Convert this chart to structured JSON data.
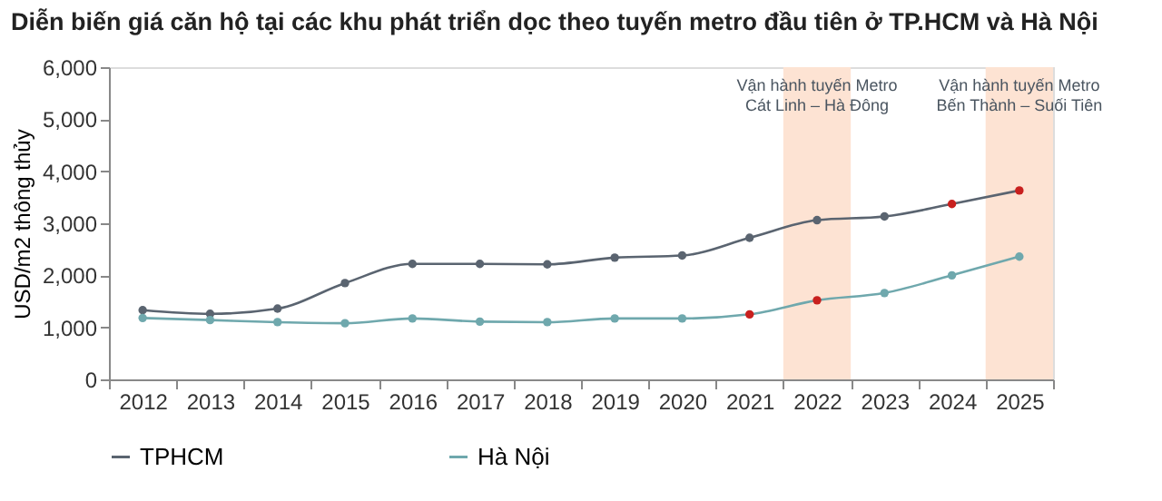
{
  "chart_data": {
    "type": "line",
    "title": "Diễn biến giá căn hộ tại các khu phát triển dọc theo tuyến metro đầu tiên ở TP.HCM và Hà Nội",
    "ylabel": "USD/m2 thông thủy",
    "categories": [
      "2012",
      "2013",
      "2014",
      "2015",
      "2016",
      "2017",
      "2018",
      "2019",
      "2020",
      "2021",
      "2022",
      "2023",
      "2024",
      "2025"
    ],
    "series": [
      {
        "name": "TPHCM",
        "color": "#5a6470",
        "values": [
          1330,
          1260,
          1360,
          1850,
          2220,
          2220,
          2210,
          2340,
          2380,
          2720,
          3060,
          3130,
          3370,
          3630
        ],
        "colors": [
          "#5a6470",
          "#5a6470",
          "#5a6470",
          "#5a6470",
          "#5a6470",
          "#5a6470",
          "#5a6470",
          "#5a6470",
          "#5a6470",
          "#5a6470",
          "#5a6470",
          "#5a6470",
          "#c8201e",
          "#c8201e"
        ]
      },
      {
        "name": "Hà Nội",
        "color": "#6fa8ad",
        "values": [
          1180,
          1140,
          1100,
          1080,
          1170,
          1110,
          1100,
          1170,
          1170,
          1250,
          1520,
          1660,
          2000,
          2360
        ],
        "colors": [
          "#6fa8ad",
          "#6fa8ad",
          "#6fa8ad",
          "#6fa8ad",
          "#6fa8ad",
          "#6fa8ad",
          "#6fa8ad",
          "#6fa8ad",
          "#6fa8ad",
          "#c8201e",
          "#c8201e",
          "#6fa8ad",
          "#6fa8ad",
          "#6fa8ad"
        ]
      }
    ],
    "ylim": [
      0,
      6000
    ],
    "yticks": [
      0,
      {
        "value": 1000,
        "label": "1,000"
      },
      {
        "value": 2000,
        "label": "2,000"
      },
      {
        "value": 3000,
        "label": "3,000"
      },
      {
        "value": 4000,
        "label": "4,000"
      },
      {
        "value": 5000,
        "label": "5,000"
      },
      {
        "value": 6000,
        "label": "6,000"
      }
    ],
    "bands": [
      {
        "axis": "x",
        "from": "2022",
        "to": "2022",
        "label": "Vận hành tuyến Metro\nCát Linh – Hà Đông",
        "color": "#fde3d3"
      },
      {
        "axis": "x",
        "from": "2025",
        "to": "2025",
        "label": "Vận hành tuyến Metro\nBến Thành – Suối Tiên",
        "color": "#fde3d3"
      }
    ],
    "marker": "circle",
    "grid": false,
    "legend": "bottom"
  }
}
